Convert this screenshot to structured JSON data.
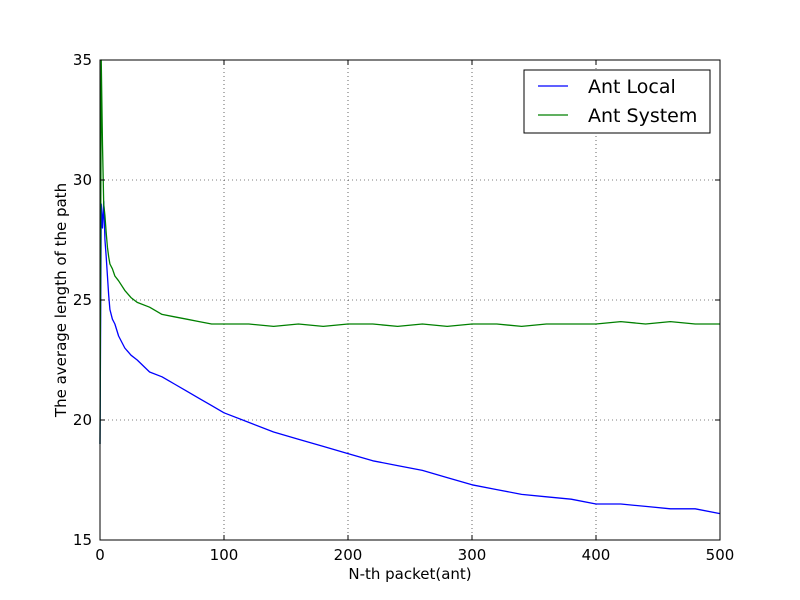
{
  "chart_data": {
    "type": "line",
    "title": "",
    "xlabel": "N-th packet(ant)",
    "ylabel": "The average length of the path",
    "xlim": [
      0,
      500
    ],
    "ylim": [
      15,
      35
    ],
    "xticks": [
      0,
      100,
      200,
      300,
      400,
      500
    ],
    "yticks": [
      15,
      20,
      25,
      30,
      35
    ],
    "xtick_labels": [
      "0",
      "100",
      "200",
      "300",
      "400",
      "500"
    ],
    "ytick_labels": [
      "15",
      "20",
      "25",
      "30",
      "35"
    ],
    "grid": true,
    "legend_position": "top-right",
    "x": [
      0,
      1,
      2,
      3,
      4,
      5,
      6,
      7,
      8,
      10,
      12,
      15,
      20,
      25,
      30,
      40,
      50,
      60,
      70,
      80,
      90,
      100,
      120,
      140,
      160,
      180,
      200,
      220,
      240,
      260,
      280,
      300,
      320,
      340,
      360,
      380,
      400,
      420,
      440,
      460,
      480,
      500
    ],
    "series": [
      {
        "name": "Ant Local",
        "color": "#0000ff",
        "values": [
          19.0,
          29.0,
          28.0,
          29.1,
          27.5,
          26.8,
          26.0,
          25.2,
          24.6,
          24.2,
          24.0,
          23.5,
          23.0,
          22.7,
          22.5,
          22.0,
          21.8,
          21.5,
          21.2,
          20.9,
          20.6,
          20.3,
          19.9,
          19.5,
          19.2,
          18.9,
          18.6,
          18.3,
          18.1,
          17.9,
          17.6,
          17.3,
          17.1,
          16.9,
          16.8,
          16.7,
          16.5,
          16.5,
          16.4,
          16.3,
          16.3,
          16.1
        ]
      },
      {
        "name": "Ant System",
        "color": "#008000",
        "values": [
          19.0,
          35.0,
          31.5,
          29.0,
          28.5,
          27.8,
          27.2,
          26.8,
          26.5,
          26.3,
          26.0,
          25.8,
          25.4,
          25.1,
          24.9,
          24.7,
          24.4,
          24.3,
          24.2,
          24.1,
          24.0,
          24.0,
          24.0,
          23.9,
          24.0,
          23.9,
          24.0,
          24.0,
          23.9,
          24.0,
          23.9,
          24.0,
          24.0,
          23.9,
          24.0,
          24.0,
          24.0,
          24.1,
          24.0,
          24.1,
          24.0,
          24.0
        ]
      }
    ]
  }
}
